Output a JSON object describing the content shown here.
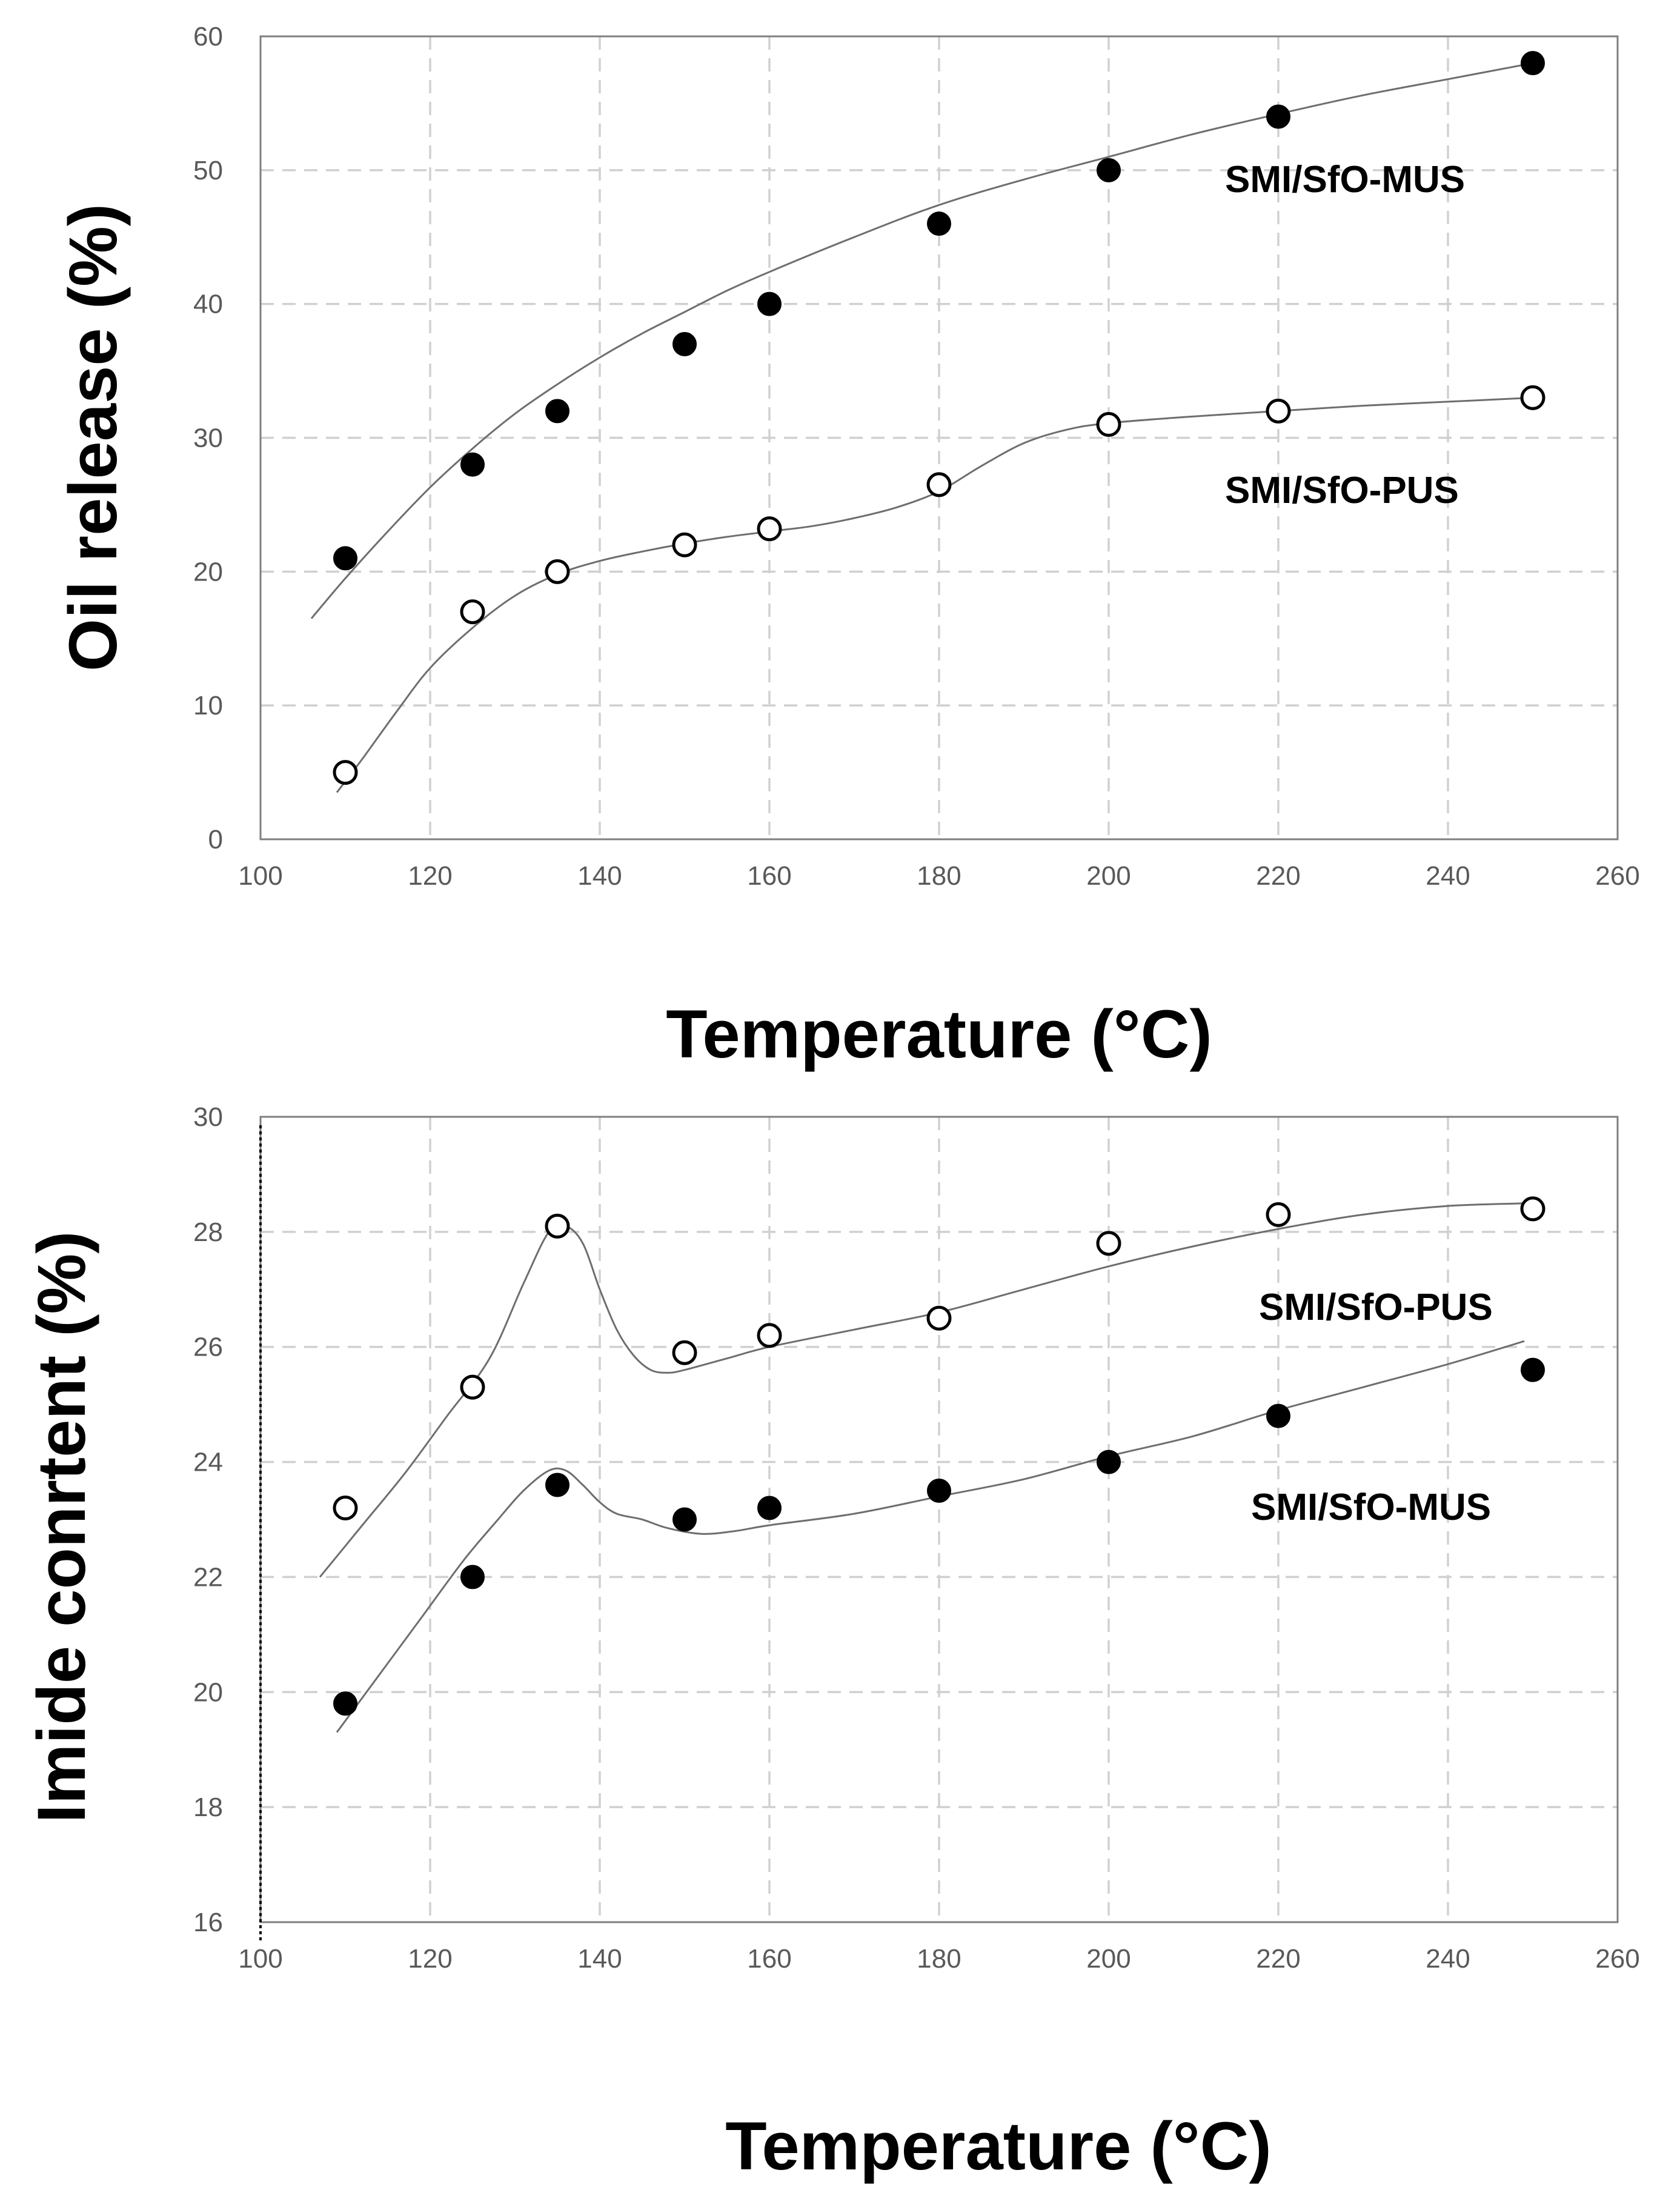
{
  "chart_data": [
    {
      "type": "scatter",
      "title": "",
      "xlabel": "Temperature (°C)",
      "ylabel": "Oil release (%)",
      "xlim": [
        100,
        260
      ],
      "ylim": [
        0,
        60
      ],
      "x_ticks": [
        100,
        120,
        140,
        160,
        180,
        200,
        220,
        240,
        260
      ],
      "y_ticks": [
        0,
        10,
        20,
        30,
        40,
        50,
        60
      ],
      "grid": true,
      "series": [
        {
          "name": "SMI/SfO-MUS",
          "marker": "filled-circle",
          "x": [
            110,
            125,
            135,
            150,
            160,
            180,
            200,
            220,
            250
          ],
          "y": [
            21,
            28,
            32,
            37,
            40,
            46,
            50,
            54,
            58
          ],
          "trend_x": [
            106,
            110,
            115,
            120,
            125,
            130,
            135,
            140,
            145,
            150,
            155,
            160,
            170,
            180,
            190,
            200,
            210,
            220,
            230,
            240,
            250
          ],
          "trend_y": [
            16.5,
            19.5,
            23,
            26.3,
            29.2,
            31.8,
            34,
            36,
            37.8,
            39.4,
            41,
            42.4,
            45,
            47.4,
            49.3,
            51,
            52.7,
            54.2,
            55.6,
            56.8,
            58
          ]
        },
        {
          "name": "SMI/SfO-PUS",
          "marker": "open-circle",
          "x": [
            110,
            125,
            135,
            150,
            160,
            180,
            200,
            220,
            250
          ],
          "y": [
            5,
            17,
            20,
            22,
            23.2,
            26.5,
            31,
            32,
            33
          ],
          "trend_x": [
            109,
            112,
            116,
            120,
            125,
            130,
            135,
            140,
            145,
            150,
            155,
            160,
            165,
            170,
            175,
            180,
            185,
            190,
            195,
            200,
            210,
            220,
            230,
            240,
            250
          ],
          "trend_y": [
            3.5,
            6,
            9.5,
            12.8,
            15.8,
            18.2,
            19.8,
            20.8,
            21.5,
            22.1,
            22.6,
            23,
            23.4,
            24,
            24.8,
            26,
            27.9,
            29.6,
            30.6,
            31.1,
            31.6,
            32,
            32.4,
            32.7,
            33
          ]
        }
      ],
      "annotations": [
        "SMI/SfO-MUS",
        "SMI/SfO-PUS"
      ]
    },
    {
      "type": "scatter",
      "title": "",
      "xlabel": "Temperature (°C)",
      "ylabel": "Imide conrtent (%)",
      "xlim": [
        100,
        260
      ],
      "ylim": [
        16,
        30
      ],
      "x_ticks": [
        100,
        120,
        140,
        160,
        180,
        200,
        220,
        240,
        260
      ],
      "y_ticks": [
        16,
        18,
        20,
        22,
        24,
        26,
        28,
        30
      ],
      "grid": true,
      "series": [
        {
          "name": "SMI/SfO-PUS",
          "marker": "open-circle",
          "x": [
            110,
            125,
            135,
            150,
            160,
            180,
            200,
            220,
            250
          ],
          "y": [
            23.2,
            25.3,
            28.1,
            25.9,
            26.2,
            26.5,
            27.8,
            28.3,
            28.4
          ],
          "trend_x": [
            107,
            112,
            117,
            122,
            127,
            131,
            134,
            136,
            138,
            140,
            142,
            144,
            146,
            148,
            150,
            155,
            160,
            170,
            180,
            190,
            200,
            210,
            220,
            230,
            240,
            250
          ],
          "trend_y": [
            22,
            22.9,
            23.8,
            24.8,
            25.8,
            27.1,
            28,
            28.1,
            27.8,
            27,
            26.3,
            25.85,
            25.6,
            25.55,
            25.6,
            25.8,
            26,
            26.3,
            26.6,
            27,
            27.4,
            27.75,
            28.05,
            28.3,
            28.45,
            28.5
          ]
        },
        {
          "name": "SMI/SfO-MUS",
          "marker": "filled-circle",
          "x": [
            110,
            125,
            135,
            150,
            160,
            180,
            200,
            220,
            250
          ],
          "y": [
            19.8,
            22,
            23.6,
            23,
            23.2,
            23.5,
            24,
            24.8,
            25.6
          ],
          "trend_x": [
            109,
            114,
            119,
            124,
            128,
            131,
            134,
            136,
            138,
            140,
            142,
            145,
            148,
            152,
            156,
            160,
            170,
            180,
            190,
            200,
            210,
            220,
            230,
            240,
            249
          ],
          "trend_y": [
            19.3,
            20.3,
            21.3,
            22.3,
            23,
            23.5,
            23.85,
            23.85,
            23.6,
            23.3,
            23.1,
            23,
            22.85,
            22.75,
            22.8,
            22.9,
            23.1,
            23.4,
            23.7,
            24.1,
            24.45,
            24.9,
            25.3,
            25.7,
            26.1
          ]
        }
      ],
      "annotations": [
        "SMI/SfO-PUS",
        "SMI/SfO-MUS"
      ]
    }
  ]
}
